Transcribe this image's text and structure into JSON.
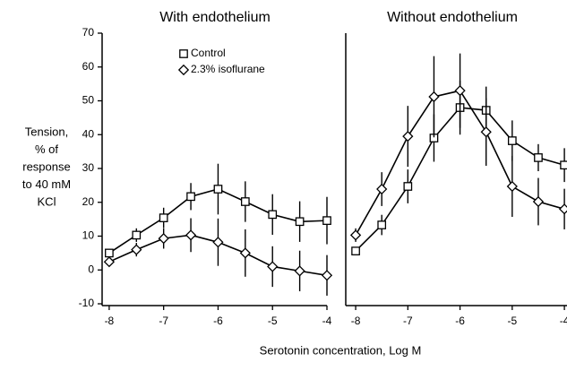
{
  "chart_data": [
    {
      "type": "line",
      "title": "With endothelium",
      "x": [
        -8,
        -7.5,
        -7,
        -6.5,
        -6,
        -5.5,
        -5,
        -4.5,
        -4
      ],
      "xlim": [
        -8.13,
        -4
      ],
      "xticks": [
        -8,
        -7,
        -6,
        -5,
        -4
      ],
      "ylim": [
        -10,
        70
      ],
      "yticks": [
        -10,
        0,
        10,
        20,
        30,
        40,
        50,
        60,
        70
      ],
      "series": [
        {
          "name": "Control",
          "marker": "square",
          "color": "#000000",
          "values": [
            5,
            10.3,
            15.4,
            21.7,
            23.9,
            20.2,
            16.4,
            14.3,
            14.6
          ],
          "errors": [
            1,
            2,
            3,
            4,
            7.5,
            6,
            6,
            6,
            7
          ]
        },
        {
          "name": "2.3% isoflurane",
          "marker": "diamond",
          "color": "#000000",
          "values": [
            2.4,
            6,
            9.3,
            10.3,
            8.2,
            5,
            1,
            -0.3,
            -1.6
          ],
          "errors": [
            1,
            2,
            3,
            5,
            7,
            7,
            6,
            6,
            6
          ]
        }
      ]
    },
    {
      "type": "line",
      "title": "Without endothelium",
      "x": [
        -8,
        -7.5,
        -7,
        -6.5,
        -6,
        -5.5,
        -5,
        -4.5,
        -4
      ],
      "xlim": [
        -8.19,
        -3.95
      ],
      "xticks": [
        -8,
        -7,
        -6,
        -5,
        -4
      ],
      "ylim": [
        -10,
        70
      ],
      "series": [
        {
          "marker": "square",
          "color": "#000000",
          "values": [
            5.6,
            13.3,
            24.7,
            39,
            48,
            47.2,
            38.2,
            33.2,
            31
          ],
          "errors": [
            1,
            3,
            5,
            7,
            8,
            7,
            6,
            4,
            5
          ]
        },
        {
          "marker": "diamond",
          "color": "#000000",
          "values": [
            10.3,
            23.9,
            39.5,
            51.2,
            53,
            40.8,
            24.7,
            20.2,
            18
          ],
          "errors": [
            2,
            5,
            9,
            12,
            11,
            10,
            9,
            7,
            6
          ]
        }
      ]
    }
  ],
  "xlabel": "Serotonin concentration, Log M",
  "ylabel": [
    "Tension,",
    "% of",
    "response",
    "to 40 mM",
    "KCl"
  ]
}
